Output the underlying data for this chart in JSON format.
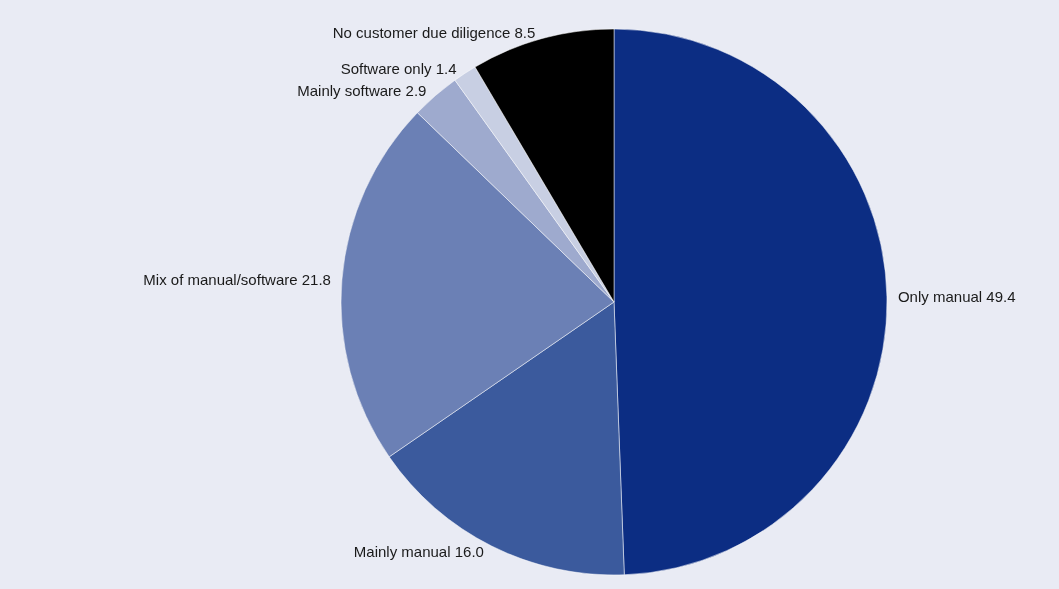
{
  "chart_data": {
    "type": "pie",
    "categories": [
      "Only manual",
      "Mainly manual",
      "Mix of manual/software",
      "Mainly software",
      "Software only",
      "No customer due diligence"
    ],
    "values": [
      49.4,
      16.0,
      21.8,
      2.9,
      1.4,
      8.5
    ],
    "value_labels": [
      "49.4",
      "16.0",
      "21.8",
      "2.9",
      "1.4",
      "8.5"
    ],
    "colors": [
      "#0c2d83",
      "#3b5a9d",
      "#6b80b5",
      "#9eaace",
      "#c8cfe3",
      "#000000"
    ],
    "legend": false
  }
}
